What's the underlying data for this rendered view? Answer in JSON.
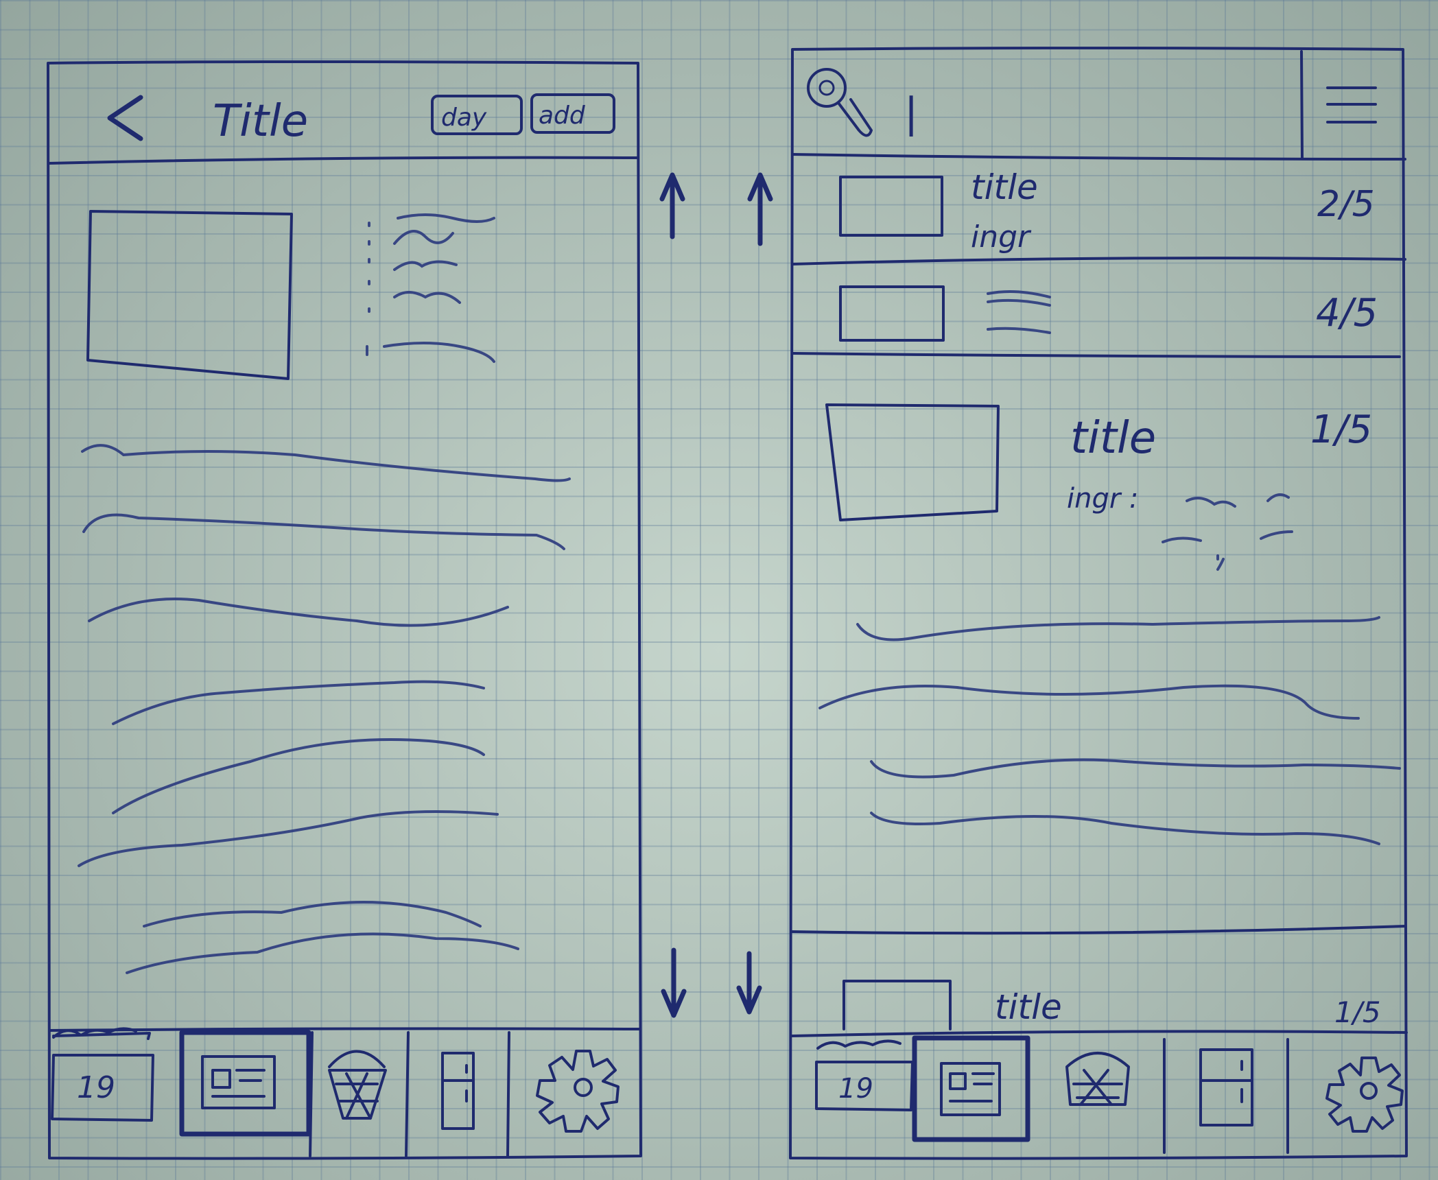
{
  "left_screen": {
    "header": {
      "back_label": "<",
      "title": "Title",
      "day_button": "day",
      "add_button": "add"
    },
    "tabs": [
      {
        "icon": "calendar-icon",
        "label": "19"
      },
      {
        "icon": "recipe-icon",
        "selected": true
      },
      {
        "icon": "basket-icon"
      },
      {
        "icon": "fridge-icon"
      },
      {
        "icon": "gear-icon"
      }
    ]
  },
  "right_screen": {
    "header": {
      "search_value": "|"
    },
    "list": [
      {
        "title": "title",
        "subtitle": "ingr",
        "rating": "2/5"
      },
      {
        "title": "",
        "subtitle": "",
        "rating": "4/5"
      },
      {
        "title": "title",
        "subtitle": "ingr :",
        "rating": "1/5"
      },
      {
        "title": "title",
        "subtitle": "",
        "rating": "1/5"
      }
    ],
    "tabs": [
      {
        "icon": "calendar-icon",
        "label": "19"
      },
      {
        "icon": "recipe-icon",
        "selected": true
      },
      {
        "icon": "basket-icon"
      },
      {
        "icon": "fridge-icon"
      },
      {
        "icon": "gear-icon"
      }
    ]
  },
  "colors": {
    "paper": "#bfd0c6",
    "ink": "#1f2a6e",
    "grid": "#587696"
  }
}
